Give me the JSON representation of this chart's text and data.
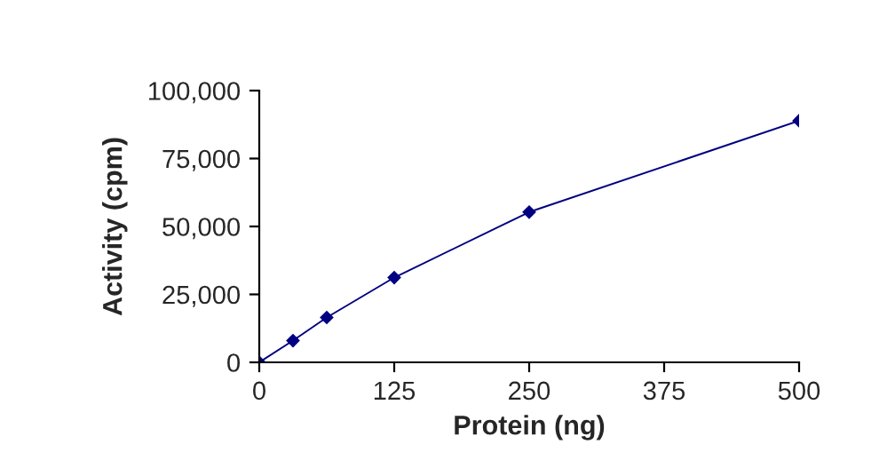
{
  "chart_data": {
    "type": "line",
    "xlabel": "Protein (ng)",
    "ylabel": "Activity (cpm)",
    "x": [
      0,
      31.25,
      62.5,
      125,
      250,
      500
    ],
    "series": [
      {
        "color": "#000080",
        "values": [
          0,
          8000,
          16500,
          31200,
          55300,
          88900
        ]
      }
    ],
    "xlim": [
      0,
      500
    ],
    "xticks": [
      0,
      125,
      250,
      375,
      500
    ],
    "ylim": [
      0,
      100000
    ],
    "yticks": [
      {
        "value": 0,
        "label": "0"
      },
      {
        "value": 25000,
        "label": "25,000"
      },
      {
        "value": 50000,
        "label": "50,000"
      },
      {
        "value": 75000,
        "label": "75,000"
      },
      {
        "value": 100000,
        "label": "100,000"
      }
    ],
    "marker": "diamond",
    "line_style": "solid",
    "grid": false,
    "legend": false
  }
}
